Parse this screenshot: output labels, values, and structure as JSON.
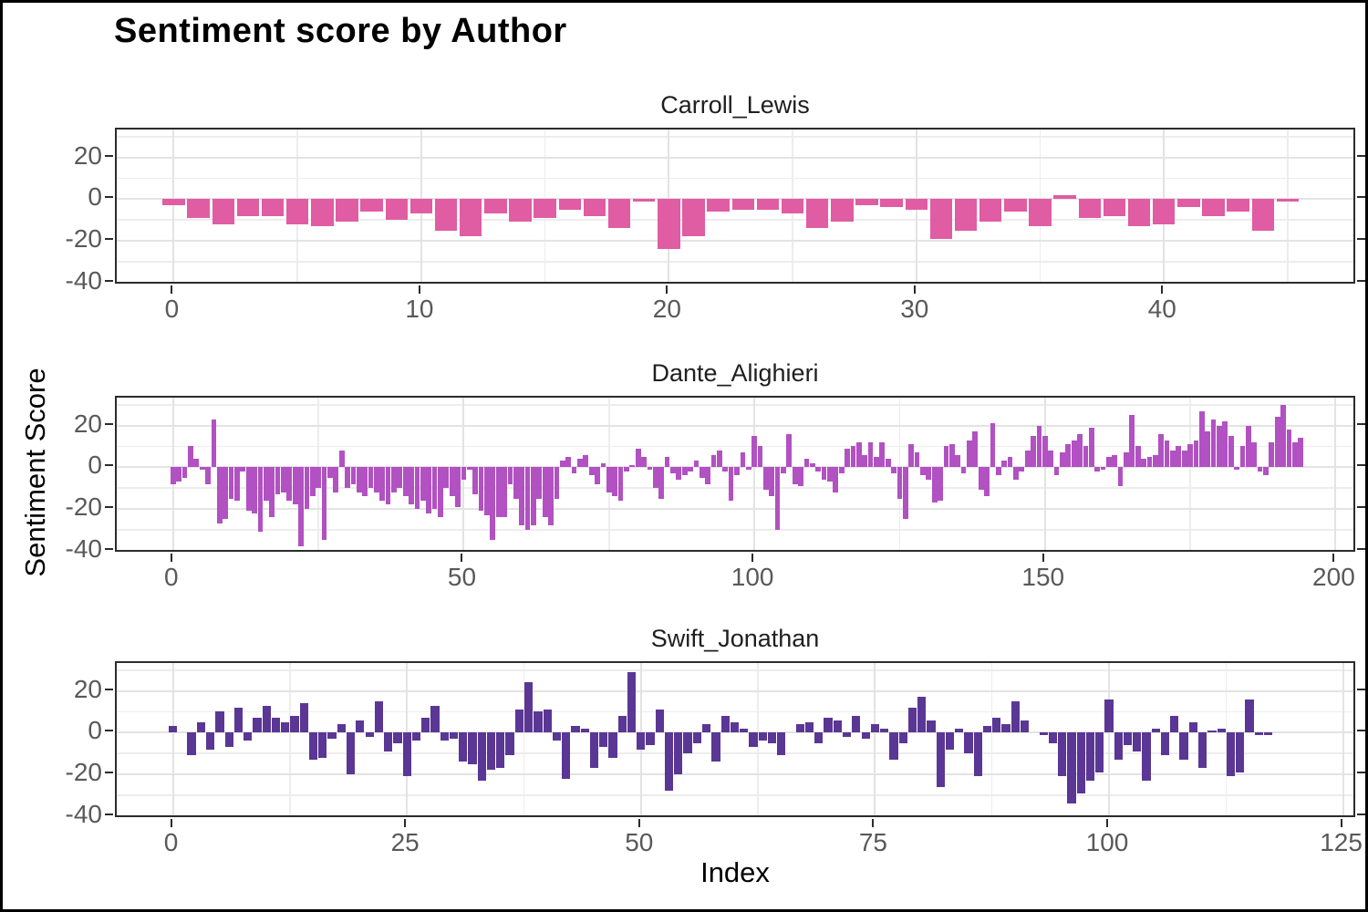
{
  "title": "Sentiment score by Author",
  "axes": {
    "x_label": "Index",
    "y_label": "Sentiment Score",
    "y_ticks": [
      20,
      0,
      -20,
      -40
    ],
    "y_tick_labels": [
      "20",
      "0",
      "-20",
      "-40"
    ],
    "y_minor_ticks": [
      30,
      10,
      -10,
      -30
    ],
    "y_range": [
      -41.4,
      33.4
    ],
    "grid": true,
    "legend": false
  },
  "chart_data": [
    {
      "type": "bar",
      "facet": "Carroll_Lewis",
      "color": "#e05ca3",
      "x_ticks": [
        0,
        10,
        20,
        30,
        40
      ],
      "x_tick_labels": [
        "0",
        "10",
        "20",
        "30",
        "40"
      ],
      "x_minor_ticks": [
        5,
        15,
        25,
        35,
        45
      ],
      "x_domain": [
        -2.3,
        47.8
      ],
      "values": [
        -3,
        -9,
        -12,
        -8,
        -8,
        -12,
        -13,
        -11,
        -6,
        -10,
        -7,
        -15,
        -18,
        -7,
        -11,
        -9,
        -5,
        -8,
        -14,
        -1,
        -24,
        -18,
        -6,
        -5,
        -5,
        -7,
        -14,
        -11,
        -3,
        -4,
        -5,
        -19,
        -15,
        -11,
        -6,
        -13,
        2,
        -9,
        -8,
        -13,
        -12,
        -4,
        -8,
        -6,
        -15,
        -1
      ]
    },
    {
      "type": "bar",
      "facet": "Dante_Alighieri",
      "color": "#b151c2",
      "x_ticks": [
        0,
        50,
        100,
        150,
        200
      ],
      "x_tick_labels": [
        "0",
        "50",
        "100",
        "150",
        "200"
      ],
      "x_minor_ticks": [
        25,
        75,
        125,
        175
      ],
      "x_domain": [
        -9.7,
        203.7
      ],
      "values": [
        -8,
        -7,
        -5,
        10,
        4,
        -1,
        -8,
        23,
        -27,
        -25,
        -15,
        -16,
        -2,
        -21,
        -22,
        -31,
        -16,
        -24,
        -13,
        -12,
        -16,
        -18,
        -38,
        -20,
        -14,
        -10,
        -35,
        -5,
        -12,
        8,
        -10,
        -8,
        -12,
        -14,
        -10,
        -12,
        -16,
        -18,
        -12,
        -10,
        -14,
        -18,
        -20,
        -16,
        -22,
        -20,
        -24,
        -10,
        -14,
        -19,
        -6,
        -1,
        -13,
        -21,
        -23,
        -35,
        -24,
        -24,
        -8,
        -15,
        -28,
        -30,
        -28,
        -15,
        -24,
        -28,
        -15,
        3,
        5,
        -3,
        4,
        6,
        -4,
        -8,
        2,
        -12,
        -14,
        -16,
        -2,
        1,
        9,
        5,
        -1,
        -10,
        -15,
        5,
        -3,
        -6,
        -4,
        -2,
        3,
        -5,
        -8,
        6,
        8,
        -2,
        -16,
        -4,
        7,
        -1,
        15,
        10,
        -11,
        -14,
        -30,
        -3,
        16,
        -8,
        -9,
        4,
        2,
        -2,
        -6,
        -7,
        -12,
        -3,
        9,
        10,
        12,
        6,
        12,
        5,
        12,
        4,
        -3,
        -15,
        -25,
        11,
        7,
        -4,
        -6,
        -17,
        -16,
        10,
        11,
        6,
        -3,
        13,
        17,
        -11,
        -14,
        21,
        -4,
        3,
        5,
        -6,
        -2,
        8,
        15,
        20,
        15,
        8,
        -4,
        7,
        11,
        13,
        16,
        10,
        19,
        -2,
        -1,
        5,
        6,
        -9,
        7,
        25,
        10,
        4,
        5,
        6,
        16,
        13,
        8,
        10,
        8,
        11,
        13,
        27,
        17,
        23,
        20,
        22,
        15,
        -1,
        10,
        20,
        12,
        -2,
        -4,
        12,
        24,
        30,
        18,
        12,
        14
      ]
    },
    {
      "type": "bar",
      "facet": "Swift_Jonathan",
      "color": "#5a3794",
      "x_ticks": [
        0,
        25,
        50,
        75,
        100,
        125
      ],
      "x_tick_labels": [
        "0",
        "25",
        "50",
        "75",
        "100",
        "125"
      ],
      "x_minor_ticks": [
        12.5,
        37.5,
        62.5,
        87.5,
        112.5
      ],
      "x_domain": [
        -6,
        126.5
      ],
      "values": [
        3,
        0,
        -11,
        5,
        -8,
        10,
        -7,
        12,
        -4,
        7,
        13,
        7,
        5,
        8,
        14,
        -13,
        -12,
        -3,
        4,
        -20,
        6,
        -2,
        15,
        -9,
        -5,
        -21,
        -4,
        7,
        13,
        -4,
        -3,
        -14,
        -15,
        -23,
        -18,
        -17,
        -11,
        11,
        24,
        10,
        11,
        -4,
        -22,
        3,
        2,
        -17,
        -7,
        -12,
        8,
        29,
        -8,
        -6,
        11,
        -28,
        -20,
        -10,
        -5,
        4,
        -14,
        8,
        5,
        2,
        -7,
        -4,
        -5,
        -11,
        0,
        4,
        5,
        -5,
        7,
        6,
        -2,
        8,
        -3,
        4,
        2,
        -13,
        -5,
        12,
        17,
        6,
        -26,
        -8,
        2,
        -10,
        -21,
        3,
        7,
        4,
        15,
        6,
        0,
        -1,
        -5,
        -21,
        -34,
        -29,
        -23,
        -19,
        16,
        -13,
        -6,
        -9,
        -23,
        2,
        -11,
        8,
        -13,
        5,
        -17,
        1,
        2,
        -21,
        -19,
        16,
        -1,
        -1,
        0
      ]
    }
  ],
  "style": {
    "grid_major_color": "#e3e3e3",
    "grid_minor_color": "#ededed",
    "panel_border_color": "#2b2b2b",
    "tick_label_color": "#595959"
  }
}
